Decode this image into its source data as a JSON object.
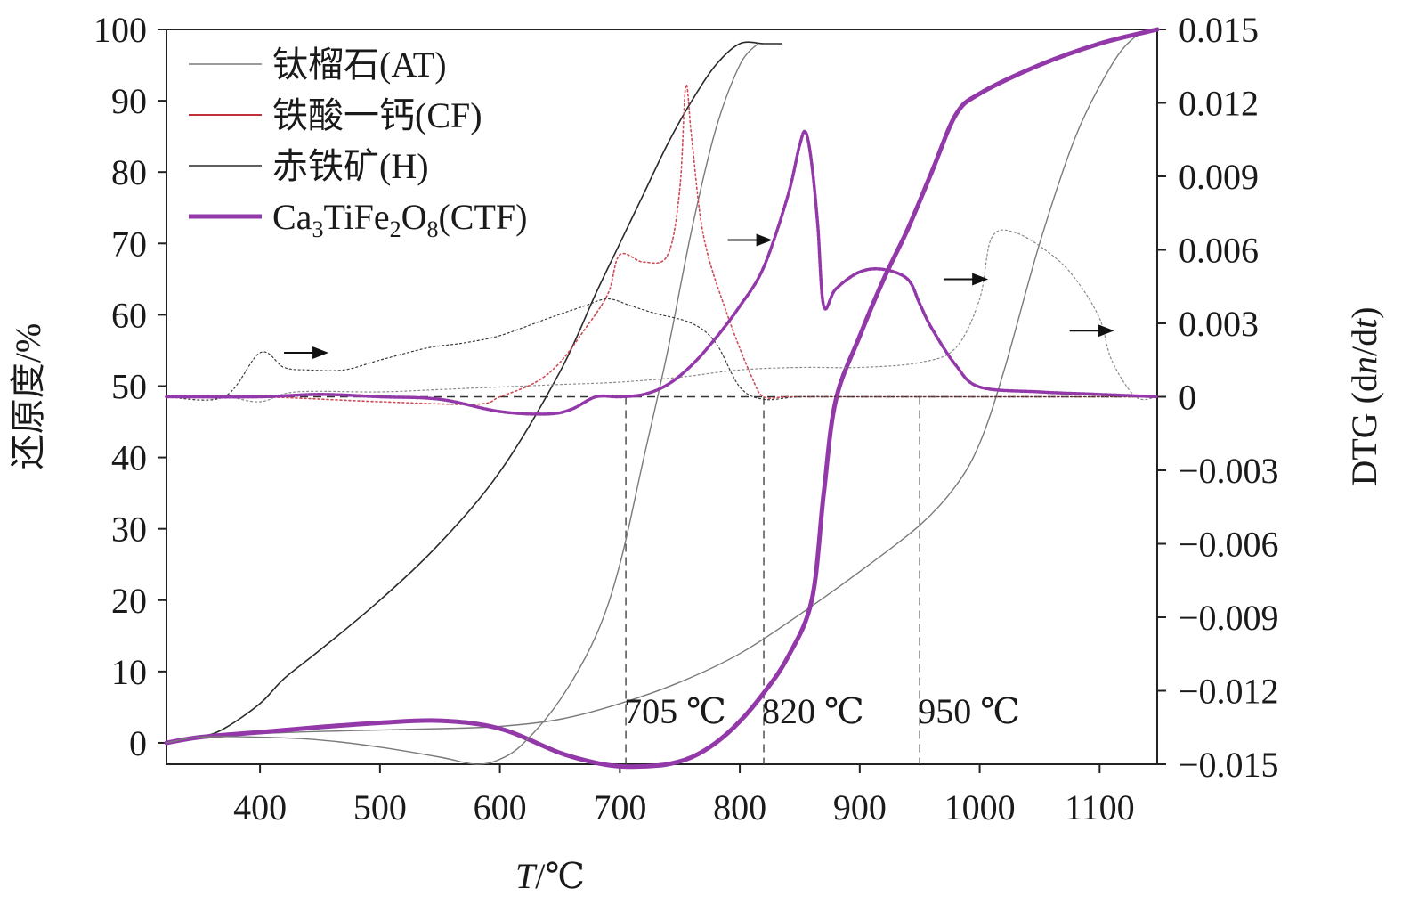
{
  "chart_data": {
    "type": "line",
    "xlabel_italic": "T",
    "xlabel_rest": "/℃",
    "ylabel": "还原度/%",
    "y2label_prefix": "DTG (d",
    "y2label_italic1": "n",
    "y2label_mid": "/d",
    "y2label_italic2": "t",
    "y2label_suffix": ")",
    "xlim": [
      322,
      1148
    ],
    "ylim": [
      -3,
      100
    ],
    "y2lim": [
      -0.015,
      0.015
    ],
    "x_ticks": [
      400,
      500,
      600,
      700,
      800,
      900,
      1000,
      1100
    ],
    "x_tick_labels": [
      "400",
      "500",
      "600",
      "700",
      "800",
      "900",
      "1000",
      "1100"
    ],
    "y_ticks": [
      0,
      10,
      20,
      30,
      40,
      50,
      60,
      70,
      80,
      90,
      100
    ],
    "y_tick_labels": [
      "0",
      "10",
      "20",
      "30",
      "40",
      "50",
      "60",
      "70",
      "80",
      "90",
      "100"
    ],
    "y2_ticks": [
      -0.015,
      -0.012,
      -0.009,
      -0.006,
      -0.003,
      0,
      0.003,
      0.006,
      0.009,
      0.012,
      0.015
    ],
    "y2_tick_labels": [
      "−0.015",
      "−0.012",
      "−0.009",
      "−0.006",
      "−0.003",
      "0",
      "0.003",
      "0.006",
      "0.009",
      "0.012",
      "0.015"
    ],
    "grid": false,
    "legend": {
      "placement": "top-left",
      "entries": [
        {
          "key": "AT",
          "label": "钛榴石(AT)",
          "color": "#7a7a7a",
          "width": 1.4
        },
        {
          "key": "CF",
          "label": "铁酸一钙(CF)",
          "color": "#c0303a",
          "width": 2
        },
        {
          "key": "H",
          "label": "赤铁矿(H)",
          "color": "#2a2a2a",
          "width": 1.6
        },
        {
          "key": "CTF",
          "label_parts": [
            "Ca",
            "3",
            "TiFe",
            "2",
            "O",
            "8",
            "(CTF)"
          ],
          "color": "#9238a8",
          "width": 5
        }
      ]
    },
    "reduction_series": [
      {
        "key": "AT",
        "color": "#7a7a7a",
        "width": 1.4,
        "x": [
          322,
          350,
          400,
          450,
          500,
          550,
          600,
          650,
          700,
          750,
          800,
          850,
          900,
          950,
          980,
          1000,
          1020,
          1050,
          1080,
          1110,
          1130,
          1148
        ],
        "y": [
          0,
          0.8,
          1.3,
          1.6,
          1.8,
          2,
          2.3,
          3.3,
          5.5,
          8.5,
          12.5,
          18,
          24,
          30.5,
          36,
          42,
          52,
          70,
          85,
          95,
          99,
          100
        ]
      },
      {
        "key": "CF",
        "color": "#c0303a",
        "width": 2,
        "x": [
          322,
          350,
          400,
          450,
          500,
          550,
          580,
          600,
          620,
          650,
          680,
          700,
          720,
          740,
          760,
          780,
          800,
          820,
          840,
          860,
          870,
          880,
          900,
          920,
          940,
          960,
          980,
          1000,
          1050,
          1100,
          1148
        ],
        "y": [
          0,
          0.8,
          1.5,
          2.2,
          2.8,
          3.1,
          2.8,
          2,
          0.8,
          -1.4,
          -2.8,
          -3.3,
          -3.3,
          -3,
          -2,
          0,
          3,
          7,
          12,
          20,
          35,
          48,
          57,
          65,
          72,
          80,
          88,
          91,
          95,
          98,
          100
        ]
      },
      {
        "key": "H",
        "color": "#2a2a2a",
        "width": 1.6,
        "x": [
          322,
          350,
          370,
          400,
          420,
          450,
          500,
          550,
          600,
          650,
          680,
          700,
          720,
          740,
          760,
          780,
          800,
          820,
          835
        ],
        "y": [
          0,
          0.8,
          2,
          5.5,
          9,
          13,
          20,
          28,
          38,
          52,
          63,
          70,
          77,
          84,
          90,
          95,
          98,
          98,
          98
        ]
      },
      {
        "key": "CTF",
        "color": "#9238a8",
        "width": 5,
        "x": [
          322,
          350,
          400,
          450,
          500,
          550,
          600,
          650,
          680,
          700,
          720,
          740,
          760,
          780,
          800,
          820,
          840,
          860,
          870,
          880,
          900,
          920,
          940,
          960,
          980,
          1000,
          1050,
          1100,
          1148
        ],
        "y": [
          0,
          0.8,
          1.5,
          2.2,
          2.8,
          3.1,
          2,
          -1.4,
          -2.8,
          -3.3,
          -3.3,
          -3,
          -2,
          0,
          3,
          7,
          12,
          20,
          35,
          48,
          57,
          65,
          72,
          80,
          88,
          91,
          95,
          98,
          100
        ]
      },
      {
        "key": "AT2",
        "color": "#7a7a7a",
        "width": 1.4,
        "x": [
          322,
          350,
          400,
          450,
          500,
          550,
          580,
          600,
          620,
          650,
          680,
          700,
          720,
          740,
          760,
          780,
          800,
          815
        ],
        "y": [
          0,
          0.8,
          0.8,
          0.4,
          -0.6,
          -2,
          -3,
          -2.3,
          0,
          6,
          15,
          25,
          40,
          55,
          72,
          86,
          95,
          98
        ]
      }
    ],
    "dtg_series": [
      {
        "key": "AT",
        "color": "#8a8a8a",
        "width": 1.2,
        "x": [
          322,
          370,
          400,
          430,
          500,
          550,
          600,
          650,
          700,
          750,
          800,
          850,
          900,
          950,
          980,
          1000,
          1010,
          1030,
          1060,
          1080,
          1100,
          1110,
          1130,
          1148
        ],
        "y": [
          0,
          0,
          -0.0002,
          0.0002,
          0.0002,
          0.0003,
          0.0004,
          0.0005,
          0.0006,
          0.0008,
          0.0011,
          0.0012,
          0.0012,
          0.0014,
          0.002,
          0.004,
          0.0065,
          0.0067,
          0.0058,
          0.0048,
          0.0032,
          0.0015,
          0,
          0
        ]
      },
      {
        "key": "CF",
        "color": "#d04a55",
        "width": 1.6,
        "x": [
          322,
          400,
          500,
          580,
          600,
          630,
          650,
          670,
          690,
          700,
          720,
          740,
          750,
          755,
          760,
          770,
          790,
          810,
          820,
          840,
          880,
          950,
          1050,
          1148
        ],
        "y": [
          0,
          0,
          -0.0002,
          -0.0003,
          0,
          0.0006,
          0.0014,
          0.0027,
          0.0042,
          0.0058,
          0.0055,
          0.0058,
          0.0085,
          0.0127,
          0.0105,
          0.0065,
          0.0033,
          0.0008,
          0,
          0,
          0,
          0,
          0,
          0
        ]
      },
      {
        "key": "H",
        "color": "#3a3a3a",
        "width": 1.2,
        "x": [
          322,
          370,
          400,
          420,
          440,
          470,
          500,
          540,
          570,
          600,
          640,
          670,
          690,
          710,
          730,
          760,
          780,
          800,
          820,
          850,
          900,
          1000,
          1148
        ],
        "y": [
          0,
          0,
          0.0018,
          0.0012,
          0.0011,
          0.0011,
          0.0015,
          0.002,
          0.0022,
          0.0025,
          0.0032,
          0.0037,
          0.004,
          0.0037,
          0.0034,
          0.003,
          0.0022,
          0.0004,
          -0.0001,
          0,
          0,
          0,
          0
        ]
      },
      {
        "key": "CTF",
        "color": "#9238a8",
        "width": 3.5,
        "x": [
          322,
          400,
          450,
          500,
          550,
          600,
          640,
          660,
          680,
          700,
          720,
          740,
          760,
          780,
          800,
          820,
          840,
          850,
          855,
          860,
          865,
          870,
          880,
          900,
          920,
          940,
          950,
          960,
          980,
          1000,
          1050,
          1100,
          1148
        ],
        "y": [
          0,
          0,
          0.0001,
          0,
          -0.0001,
          -0.0006,
          -0.0007,
          -0.0005,
          0,
          0,
          0.0001,
          0.0005,
          0.0013,
          0.0024,
          0.0037,
          0.0053,
          0.0082,
          0.0103,
          0.0108,
          0.0095,
          0.007,
          0.0037,
          0.0044,
          0.0051,
          0.0052,
          0.0048,
          0.0038,
          0.0028,
          0.0013,
          0.0004,
          0.0002,
          0.0001,
          0
        ]
      }
    ],
    "annotations": [
      {
        "label": "705 ℃",
        "x": 705
      },
      {
        "label": "820 ℃",
        "x": 820
      },
      {
        "label": "950 ℃",
        "x": 950
      }
    ],
    "arrows": [
      {
        "x": 420,
        "y2": 0.0018,
        "dir": "right"
      },
      {
        "x": 790,
        "y2": 0.0064,
        "dir": "right"
      },
      {
        "x": 970,
        "y2": 0.0048,
        "dir": "right"
      },
      {
        "x": 1075,
        "y2": 0.0027,
        "dir": "right"
      }
    ],
    "dtg_zero_line": true
  }
}
